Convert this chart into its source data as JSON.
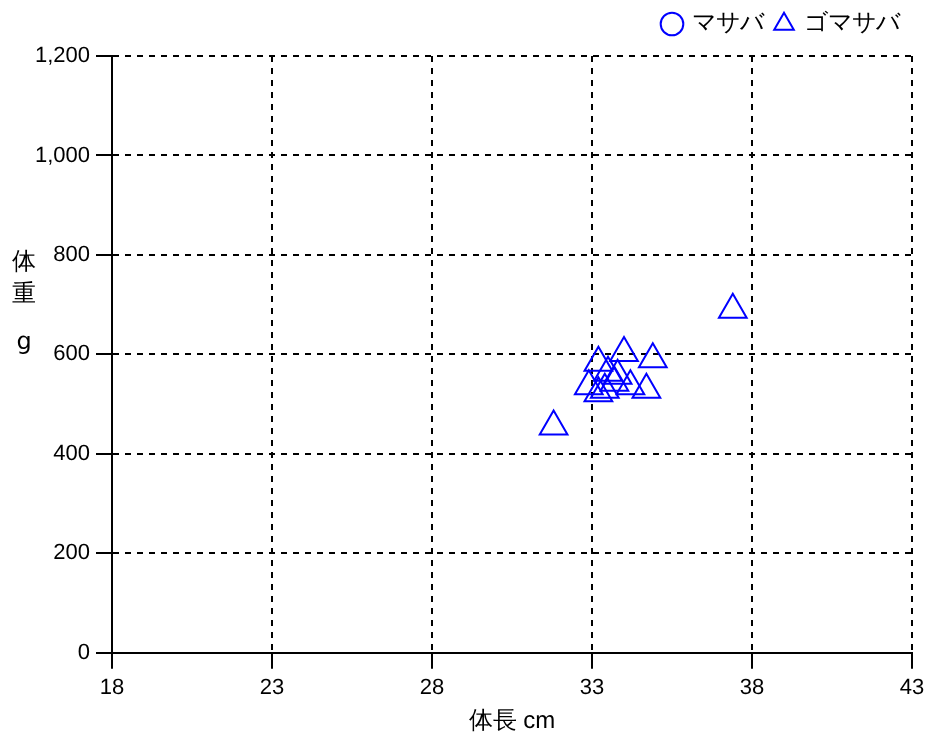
{
  "chart_data": {
    "type": "scatter",
    "xlabel": "体長 cm",
    "ylabel": "体重 g",
    "xlim": [
      18,
      43
    ],
    "xticks": [
      18,
      23,
      28,
      33,
      38,
      43
    ],
    "ylim": [
      0,
      1200
    ],
    "yticks": [
      0,
      {
        "value": 200,
        "label": "200"
      },
      {
        "value": 400,
        "label": "400"
      },
      {
        "value": 600,
        "label": "600"
      },
      {
        "value": 800,
        "label": "800"
      },
      {
        "value": 1000,
        "label": "1,000"
      },
      {
        "value": 1200,
        "label": "1,200"
      }
    ],
    "grid": true,
    "legend": "top right",
    "line_style": "dashed",
    "series": [
      {
        "name": "マサバ",
        "color": "#0000ff",
        "marker": "circle"
      },
      {
        "name": "ゴマサバ",
        "color": "#0000ff",
        "marker": "triangle",
        "x": [
          31.8,
          37.4,
          34.0,
          34.9,
          33.2,
          34.7,
          32.9,
          33.5,
          33.7,
          33.4,
          34.2,
          33.2,
          33.8
        ],
        "values": [
          455,
          690,
          603,
          590,
          583,
          529,
          536,
          563,
          543,
          529,
          536,
          522,
          557
        ]
      }
    ]
  }
}
